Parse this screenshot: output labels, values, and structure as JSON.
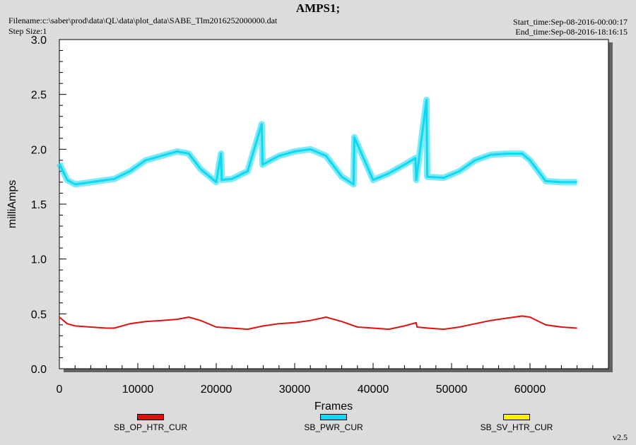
{
  "header": {
    "title": "AMPS1;",
    "filename": "Filename:c:\\saber\\prod\\data\\QL\\data\\plot_data\\SABE_Tlm2016252000000.dat",
    "step_size": "Step Size:1",
    "start_time": "Start_time:Sep-08-2016-00:00:17",
    "end_time": "End_time:Sep-08-2016-18:16:15"
  },
  "version": "v2.5",
  "chart_data": {
    "type": "line",
    "title": "AMPS1;",
    "xlabel": "Frames",
    "ylabel": "milliAmps",
    "xlim": [
      0,
      70000
    ],
    "ylim": [
      0.0,
      3.0
    ],
    "xticks": [
      0,
      10000,
      20000,
      30000,
      40000,
      50000,
      60000
    ],
    "xtick_labels": [
      "0",
      "10000",
      "20000",
      "30000",
      "40000",
      "50000",
      "60000"
    ],
    "yticks": [
      0.0,
      0.5,
      1.0,
      1.5,
      2.0,
      2.5,
      3.0
    ],
    "ytick_labels": [
      "0.0",
      "0.5",
      "1.0",
      "1.5",
      "2.0",
      "2.5",
      "3.0"
    ],
    "grid": false,
    "legend_position": "bottom",
    "series": [
      {
        "name": "SB_OP_HTR_CUR",
        "color": "#e01010",
        "x": [
          0,
          1000,
          2000,
          4000,
          6000,
          7000,
          9000,
          11000,
          13000,
          15000,
          16500,
          18000,
          20000,
          22000,
          24000,
          26000,
          28000,
          30000,
          32000,
          34000,
          36000,
          38000,
          40000,
          42000,
          44000,
          45500,
          45600,
          47000,
          49000,
          51000,
          53000,
          55000,
          57000,
          59000,
          60000,
          62000,
          64000,
          66000
        ],
        "values": [
          0.47,
          0.41,
          0.39,
          0.38,
          0.37,
          0.37,
          0.41,
          0.43,
          0.44,
          0.45,
          0.47,
          0.44,
          0.38,
          0.37,
          0.36,
          0.39,
          0.41,
          0.42,
          0.44,
          0.47,
          0.43,
          0.38,
          0.37,
          0.36,
          0.39,
          0.42,
          0.38,
          0.37,
          0.36,
          0.38,
          0.41,
          0.44,
          0.46,
          0.48,
          0.47,
          0.4,
          0.38,
          0.37
        ]
      },
      {
        "name": "SB_PWR_CUR",
        "color": "#10d8f0",
        "x": [
          0,
          1000,
          2000,
          4000,
          6000,
          7000,
          9000,
          11000,
          13000,
          15000,
          16500,
          18000,
          20000,
          20600,
          20700,
          22000,
          24000,
          25800,
          25900,
          28000,
          30000,
          32000,
          34000,
          36000,
          37500,
          37600,
          40000,
          42000,
          44000,
          45400,
          45500,
          46800,
          46900,
          49000,
          51000,
          53000,
          55000,
          57000,
          59000,
          60000,
          62000,
          64000,
          66000
        ],
        "values": [
          1.87,
          1.72,
          1.68,
          1.7,
          1.72,
          1.73,
          1.8,
          1.9,
          1.94,
          1.98,
          1.96,
          1.82,
          1.7,
          1.96,
          1.72,
          1.73,
          1.8,
          2.23,
          1.86,
          1.94,
          1.98,
          2.0,
          1.94,
          1.75,
          1.68,
          2.11,
          1.72,
          1.78,
          1.86,
          1.92,
          1.72,
          2.45,
          1.75,
          1.74,
          1.8,
          1.9,
          1.95,
          1.96,
          1.96,
          1.9,
          1.71,
          1.7,
          1.7
        ]
      },
      {
        "name": "SB_SV_HTR_CUR",
        "color": "#f8f000",
        "x": [],
        "values": []
      }
    ]
  }
}
